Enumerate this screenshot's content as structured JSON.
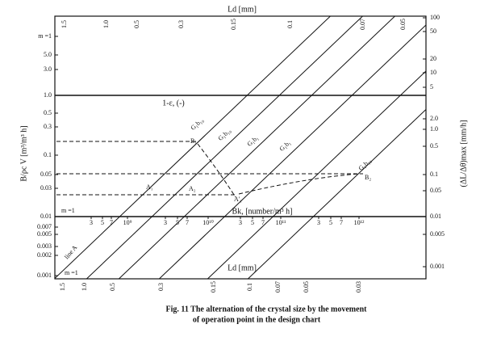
{
  "top_axis": {
    "title": "Ld [mm]",
    "ticks": [
      "1.5",
      "1.0",
      "0.5",
      "0.3",
      "0.15",
      "0.1",
      "0.07",
      "0.05"
    ]
  },
  "left_axis": {
    "title": "B/ρc V [m³/m³ h]",
    "ticks": [
      "m =1",
      "5.0",
      "3.0",
      "1.0",
      "0.5",
      "0.3",
      "0.1",
      "0.05",
      "0.03",
      "0.01",
      "0.007",
      "0.005",
      "0.003",
      "0.002",
      "0.001"
    ]
  },
  "right_axis": {
    "title": "(ΔL/Δθ)max [mm/h]",
    "ticks": [
      "100",
      "50",
      "20",
      "10",
      "5",
      "2.0",
      "1.0",
      "0.5",
      "0.1",
      "0.05",
      "0.01",
      "0.005",
      "0.001"
    ]
  },
  "middle_axis": {
    "title": "Bk, [number/m³ h]",
    "ticks": [
      "3",
      "5",
      "7",
      "10⁹",
      "3",
      "5",
      "7",
      "10¹⁰",
      "3",
      "5",
      "7",
      "10¹¹",
      "3",
      "5",
      "7",
      "10¹²"
    ]
  },
  "bottom_axis": {
    "title": "Ld [mm]",
    "ticks": [
      "1.5",
      "1.0",
      "0.5",
      "0.3",
      "0.15",
      "0.1",
      "0.07",
      "0.05",
      "0.03"
    ]
  },
  "void_label": "1-ε, (-)",
  "line_labels": [
    "G₁b₁₀",
    "G₁b₁₀",
    "G₁b₁",
    "G₁b₁",
    "G₁b₁₀"
  ],
  "point_labels": [
    "B₁",
    "A₁",
    "A₂",
    "A'₁",
    "B₂"
  ],
  "side_labels": [
    "m =1",
    "line A",
    "m =1"
  ],
  "caption": [
    "Fig. 11  The alternation of the crystal size by the movement",
    "of operation point in the design chart"
  ]
}
